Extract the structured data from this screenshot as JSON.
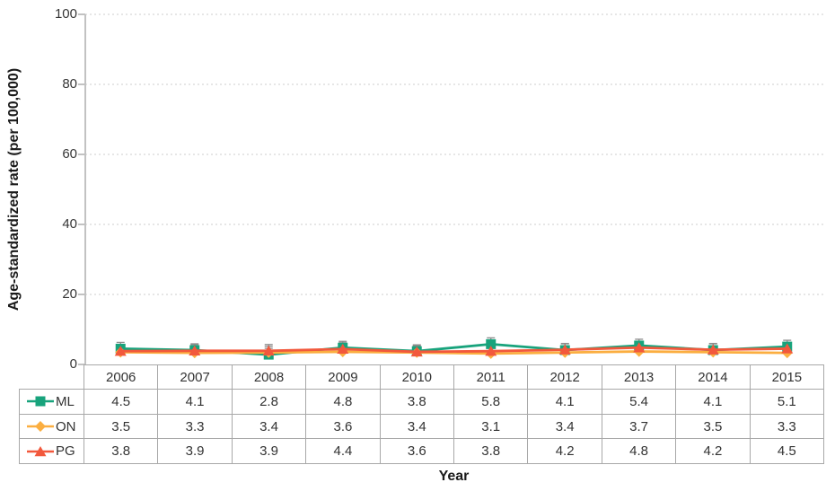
{
  "chart_data": {
    "type": "line",
    "xlabel": "Year",
    "ylabel": "Age-standardized rate (per 100,000)",
    "ylim": [
      0,
      100
    ],
    "yticks": [
      0,
      20,
      40,
      60,
      80,
      100
    ],
    "grid": "horizontal-dotted",
    "legend_position": "table-left-column",
    "categories": [
      "2006",
      "2007",
      "2008",
      "2009",
      "2010",
      "2011",
      "2012",
      "2013",
      "2014",
      "2015"
    ],
    "series": [
      {
        "name": "ML",
        "marker": "square",
        "color": "#18A37C",
        "values": [
          4.5,
          4.1,
          2.8,
          4.8,
          3.8,
          5.8,
          4.1,
          5.4,
          4.1,
          5.1
        ]
      },
      {
        "name": "ON",
        "marker": "diamond",
        "color": "#FBAE40",
        "values": [
          3.5,
          3.3,
          3.4,
          3.6,
          3.4,
          3.1,
          3.4,
          3.7,
          3.5,
          3.3
        ]
      },
      {
        "name": "PG",
        "marker": "triangle",
        "color": "#F2583C",
        "values": [
          3.8,
          3.9,
          3.9,
          4.4,
          3.6,
          3.8,
          4.2,
          4.8,
          4.2,
          4.5
        ]
      }
    ],
    "error_bars": {
      "visible": true,
      "upper_whisker_estimate": 1.8
    },
    "colors": {
      "grid": "#cccccc",
      "axis": "#c2c2c2",
      "table_border": "#a8a8a8",
      "text": "#333333",
      "error_bar": "#8c8c8c"
    }
  }
}
